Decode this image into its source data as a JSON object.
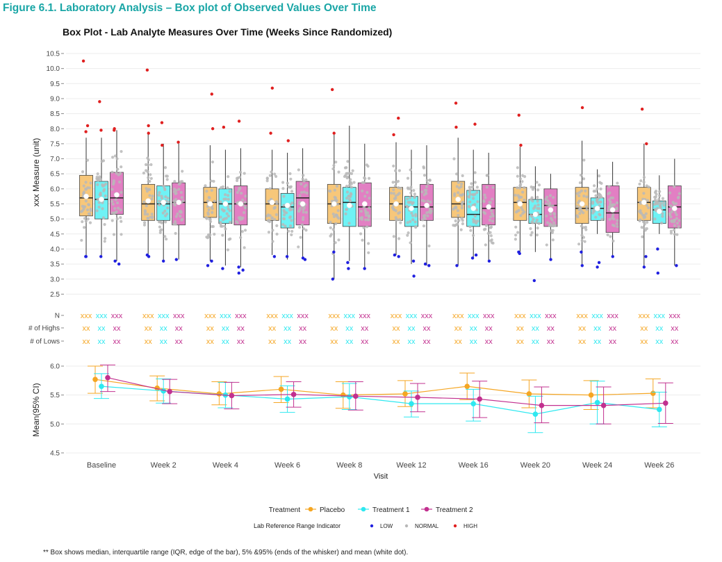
{
  "figure_title": "Figure 6.1. Laboratory Analysis – Box plot of Observed Values Over Time",
  "footnote": "** Box shows median, interquartile range (IQR, edge of the bar), 5% &95% (ends of the whisker) and mean (white dot).",
  "colors": {
    "placebo": "#F5A623",
    "treatment1": "#2EE8F0",
    "treatment2": "#C2308F",
    "placebo_box": "#F7C77A",
    "treatment1_box": "#6FF2F5",
    "treatment2_box": "#E27FC3",
    "low": "#2020E0",
    "normal": "#b8b8b8",
    "high": "#E02020"
  },
  "chart_data": [
    {
      "type": "box",
      "title": "Box Plot - Lab Analyte Measures Over Time (Weeks Since Randomized)",
      "ylabel": "xxx Measure (unit)",
      "ylim": [
        2.5,
        10.5
      ],
      "yticks": [
        "2.5",
        "3.0",
        "3.5",
        "4.0",
        "4.5",
        "5.0",
        "5.5",
        "6.0",
        "6.5",
        "7.0",
        "7.5",
        "8.0",
        "8.5",
        "9.0",
        "9.5",
        "10.0",
        "10.5"
      ],
      "grid": true,
      "categories": [
        "Baseline",
        "Week 2",
        "Week 4",
        "Week 6",
        "Week 8",
        "Week 12",
        "Week 16",
        "Week 20",
        "Week 24",
        "Week 26"
      ],
      "series": [
        {
          "name": "Placebo",
          "boxes": [
            {
              "whislo": 3.75,
              "q1": 5.1,
              "median": 5.7,
              "q3": 6.45,
              "whishi": 7.7,
              "mean": 5.75,
              "lows": [
                3.75,
                3.75
              ],
              "highs": [
                10.25,
                8.1,
                7.9
              ]
            },
            {
              "whislo": 3.8,
              "q1": 4.95,
              "median": 5.5,
              "q3": 6.15,
              "whishi": 7.9,
              "mean": 5.6,
              "lows": [
                3.75,
                3.8
              ],
              "highs": [
                9.95,
                8.1,
                7.85
              ]
            },
            {
              "whislo": 3.6,
              "q1": 5.05,
              "median": 5.55,
              "q3": 6.05,
              "whishi": 7.45,
              "mean": 5.5,
              "lows": [
                3.6,
                3.45
              ],
              "highs": [
                8.0,
                9.15
              ]
            },
            {
              "whislo": 3.8,
              "q1": 4.95,
              "median": 5.5,
              "q3": 6.0,
              "whishi": 7.3,
              "mean": 5.55,
              "lows": [
                3.75
              ],
              "highs": [
                9.35,
                7.85
              ]
            },
            {
              "whislo": 3.0,
              "q1": 4.85,
              "median": 5.5,
              "q3": 6.15,
              "whishi": 7.8,
              "mean": 5.5,
              "lows": [
                3.0,
                3.9
              ],
              "highs": [
                9.3,
                7.85
              ]
            },
            {
              "whislo": 3.8,
              "q1": 4.95,
              "median": 5.5,
              "q3": 6.05,
              "whishi": 7.55,
              "mean": 5.5,
              "lows": [
                3.75,
                3.8
              ],
              "highs": [
                8.35,
                7.8
              ]
            },
            {
              "whislo": 3.45,
              "q1": 5.05,
              "median": 5.5,
              "q3": 6.25,
              "whishi": 7.7,
              "mean": 5.65,
              "lows": [
                3.45
              ],
              "highs": [
                8.85,
                8.05
              ]
            },
            {
              "whislo": 3.9,
              "q1": 4.95,
              "median": 5.55,
              "q3": 6.05,
              "whishi": 7.4,
              "mean": 5.5,
              "lows": [
                3.9,
                3.85
              ],
              "highs": [
                8.45,
                7.45
              ]
            },
            {
              "whislo": 3.45,
              "q1": 4.85,
              "median": 5.35,
              "q3": 6.05,
              "whishi": 7.6,
              "mean": 5.5,
              "lows": [
                3.9,
                3.45
              ],
              "highs": [
                8.7
              ]
            },
            {
              "whislo": 3.4,
              "q1": 4.95,
              "median": 5.55,
              "q3": 6.05,
              "whishi": 7.5,
              "mean": 5.55,
              "lows": [
                3.4,
                3.75
              ],
              "highs": [
                8.65,
                7.5
              ]
            }
          ]
        },
        {
          "name": "Treatment 1",
          "boxes": [
            {
              "whislo": 3.75,
              "q1": 5.0,
              "median": 5.65,
              "q3": 6.25,
              "whishi": 7.7,
              "mean": 5.65,
              "lows": [
                3.75
              ],
              "highs": [
                8.9,
                7.95
              ]
            },
            {
              "whislo": 3.6,
              "q1": 4.95,
              "median": 5.5,
              "q3": 6.1,
              "whishi": 7.5,
              "mean": 5.55,
              "lows": [
                3.6
              ],
              "highs": [
                8.2,
                7.45
              ]
            },
            {
              "whislo": 3.45,
              "q1": 4.85,
              "median": 5.5,
              "q3": 6.0,
              "whishi": 7.3,
              "mean": 5.5,
              "lows": [
                3.35
              ],
              "highs": [
                8.05
              ]
            },
            {
              "whislo": 3.65,
              "q1": 4.7,
              "median": 5.4,
              "q3": 5.85,
              "whishi": 7.2,
              "mean": 5.45,
              "lows": [
                3.75
              ],
              "highs": [
                7.6
              ]
            },
            {
              "whislo": 3.6,
              "q1": 4.75,
              "median": 5.55,
              "q3": 6.05,
              "whishi": 8.1,
              "mean": 5.45,
              "lows": [
                3.55,
                3.35
              ],
              "highs": []
            },
            {
              "whislo": 3.5,
              "q1": 4.75,
              "median": 5.4,
              "q3": 5.75,
              "whishi": 7.3,
              "mean": 5.35,
              "lows": [
                3.1,
                3.6
              ],
              "highs": []
            },
            {
              "whislo": 3.7,
              "q1": 4.75,
              "median": 5.15,
              "q3": 5.95,
              "whishi": 7.3,
              "mean": 5.35,
              "lows": [
                3.7,
                3.8
              ],
              "highs": [
                8.15
              ]
            },
            {
              "whislo": 3.9,
              "q1": 4.85,
              "median": 5.15,
              "q3": 5.65,
              "whishi": 6.75,
              "mean": 5.15,
              "lows": [
                2.95
              ],
              "highs": []
            },
            {
              "whislo": 4.5,
              "q1": 4.95,
              "median": 5.35,
              "q3": 5.7,
              "whishi": 6.65,
              "mean": 5.35,
              "lows": [
                3.55,
                3.4
              ],
              "highs": []
            },
            {
              "whislo": 4.5,
              "q1": 4.85,
              "median": 5.3,
              "q3": 5.6,
              "whishi": 6.45,
              "mean": 5.25,
              "lows": [
                4.0,
                3.2
              ],
              "highs": []
            }
          ]
        },
        {
          "name": "Treatment 2",
          "boxes": [
            {
              "whislo": 3.6,
              "q1": 5.15,
              "median": 5.7,
              "q3": 6.55,
              "whishi": 7.95,
              "mean": 5.8,
              "lows": [
                3.5,
                3.6
              ],
              "highs": [
                8.0,
                7.95
              ]
            },
            {
              "whislo": 3.65,
              "q1": 4.8,
              "median": 5.55,
              "q3": 6.2,
              "whishi": 7.5,
              "mean": 5.55,
              "lows": [
                3.65
              ],
              "highs": [
                7.55
              ]
            },
            {
              "whislo": 3.4,
              "q1": 4.8,
              "median": 5.5,
              "q3": 6.1,
              "whishi": 7.35,
              "mean": 5.5,
              "lows": [
                3.2,
                3.4,
                3.3
              ],
              "highs": [
                8.25
              ]
            },
            {
              "whislo": 3.7,
              "q1": 4.8,
              "median": 5.7,
              "q3": 6.25,
              "whishi": 7.35,
              "mean": 5.5,
              "lows": [
                3.65,
                3.7
              ],
              "highs": []
            },
            {
              "whislo": 3.4,
              "q1": 4.75,
              "median": 5.4,
              "q3": 6.2,
              "whishi": 7.5,
              "mean": 5.5,
              "lows": [
                3.35
              ],
              "highs": []
            },
            {
              "whislo": 3.45,
              "q1": 4.95,
              "median": 5.4,
              "q3": 6.15,
              "whishi": 7.45,
              "mean": 5.45,
              "lows": [
                3.45,
                3.5
              ],
              "highs": []
            },
            {
              "whislo": 3.6,
              "q1": 4.8,
              "median": 5.35,
              "q3": 6.15,
              "whishi": 7.2,
              "mean": 5.4,
              "lows": [
                3.6
              ],
              "highs": []
            },
            {
              "whislo": 3.65,
              "q1": 4.75,
              "median": 5.45,
              "q3": 6.0,
              "whishi": 6.5,
              "mean": 5.3,
              "lows": [
                3.65
              ],
              "highs": []
            },
            {
              "whislo": 3.75,
              "q1": 4.55,
              "median": 5.2,
              "q3": 6.1,
              "whishi": 6.9,
              "mean": 5.3,
              "lows": [
                3.75
              ],
              "highs": []
            },
            {
              "whislo": 3.45,
              "q1": 4.7,
              "median": 5.4,
              "q3": 6.1,
              "whishi": 7.0,
              "mean": 5.35,
              "lows": [
                3.45
              ],
              "highs": []
            }
          ]
        }
      ]
    },
    {
      "type": "table",
      "row_labels": [
        "N",
        "# of Highs",
        "# of Lows"
      ],
      "cells": {
        "N": [
          "xxx",
          "xxx",
          "xxx"
        ],
        "# of Highs": [
          "xx",
          "xx",
          "xx"
        ],
        "# of Lows": [
          "xx",
          "xx",
          "xx"
        ]
      }
    },
    {
      "type": "line",
      "ylabel": "Mean(95% CI)",
      "xlabel": "Visit",
      "ylim": [
        4.5,
        6.0
      ],
      "yticks": [
        "4.5",
        "5.0",
        "5.5",
        "6.0"
      ],
      "grid": true,
      "categories": [
        "Baseline",
        "Week 2",
        "Week 4",
        "Week 6",
        "Week 8",
        "Week 12",
        "Week 16",
        "Week 20",
        "Week 24",
        "Week 26"
      ],
      "series": [
        {
          "name": "Placebo",
          "values": [
            5.77,
            5.62,
            5.52,
            5.6,
            5.5,
            5.52,
            5.65,
            5.52,
            5.5,
            5.53
          ],
          "lower": [
            5.53,
            5.4,
            5.33,
            5.37,
            5.27,
            5.3,
            5.42,
            5.28,
            5.25,
            5.28
          ],
          "upper": [
            6.0,
            5.83,
            5.73,
            5.82,
            5.73,
            5.75,
            5.88,
            5.76,
            5.75,
            5.78
          ]
        },
        {
          "name": "Treatment 1",
          "values": [
            5.65,
            5.57,
            5.5,
            5.43,
            5.47,
            5.35,
            5.35,
            5.17,
            5.37,
            5.25
          ],
          "lower": [
            5.44,
            5.36,
            5.28,
            5.2,
            5.25,
            5.12,
            5.05,
            4.85,
            5.0,
            4.95
          ],
          "upper": [
            5.87,
            5.78,
            5.72,
            5.66,
            5.7,
            5.57,
            5.6,
            5.48,
            5.74,
            5.55
          ]
        },
        {
          "name": "Treatment 2",
          "values": [
            5.8,
            5.56,
            5.49,
            5.51,
            5.48,
            5.46,
            5.43,
            5.32,
            5.32,
            5.36
          ],
          "lower": [
            5.56,
            5.35,
            5.26,
            5.29,
            5.24,
            5.21,
            5.11,
            5.02,
            5.0,
            5.01
          ],
          "upper": [
            6.02,
            5.77,
            5.72,
            5.73,
            5.73,
            5.7,
            5.74,
            5.64,
            5.64,
            5.71
          ]
        }
      ]
    }
  ],
  "legend": {
    "treatment_title": "Treatment",
    "treatments": [
      "Placebo",
      "Treatment 1",
      "Treatment 2"
    ],
    "range_title": "Lab Reference Range Indicator",
    "ranges": [
      "LOW",
      "NORMAL",
      "HIGH"
    ]
  }
}
